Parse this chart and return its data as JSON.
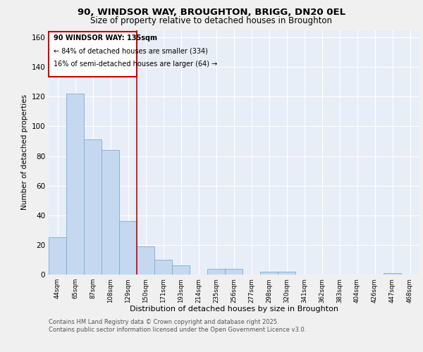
{
  "title_line1": "90, WINDSOR WAY, BROUGHTON, BRIGG, DN20 0EL",
  "title_line2": "Size of property relative to detached houses in Broughton",
  "xlabel": "Distribution of detached houses by size in Broughton",
  "ylabel": "Number of detached properties",
  "categories": [
    "44sqm",
    "65sqm",
    "87sqm",
    "108sqm",
    "129sqm",
    "150sqm",
    "171sqm",
    "193sqm",
    "214sqm",
    "235sqm",
    "256sqm",
    "277sqm",
    "298sqm",
    "320sqm",
    "341sqm",
    "362sqm",
    "383sqm",
    "404sqm",
    "426sqm",
    "447sqm",
    "468sqm"
  ],
  "values": [
    25,
    122,
    91,
    84,
    36,
    19,
    10,
    6,
    0,
    4,
    4,
    0,
    2,
    2,
    0,
    0,
    0,
    0,
    0,
    1,
    0
  ],
  "bar_color": "#c5d8f0",
  "bar_edge_color": "#7aadd4",
  "vline_x_index": 4,
  "vline_color": "#cc0000",
  "annotation_title": "90 WINDSOR WAY: 135sqm",
  "annotation_line1": "← 84% of detached houses are smaller (334)",
  "annotation_line2": "16% of semi-detached houses are larger (64) →",
  "annotation_box_color": "#cc0000",
  "ylim": [
    0,
    165
  ],
  "yticks": [
    0,
    20,
    40,
    60,
    80,
    100,
    120,
    140,
    160
  ],
  "footer_line1": "Contains HM Land Registry data © Crown copyright and database right 2025.",
  "footer_line2": "Contains public sector information licensed under the Open Government Licence v3.0.",
  "fig_bg_color": "#f0f0f0",
  "plot_bg_color": "#e8eef8"
}
